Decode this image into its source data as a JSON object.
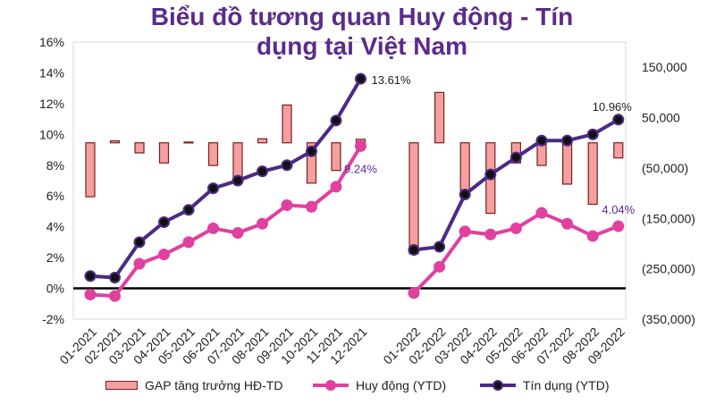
{
  "title_line1": "Biểu đồ tương quan Huy động - Tín",
  "title_line2": "dụng tại Việt Nam",
  "chart_data": {
    "type": "combo",
    "title": "Biểu đồ tương quan Huy động - Tín dụng tại Việt Nam",
    "categories": [
      "01-2021",
      "02-2021",
      "03-2021",
      "04-2021",
      "05-2021",
      "06-2021",
      "07-2021",
      "08-2021",
      "09-2021",
      "10-2021",
      "11-2021",
      "12-2021",
      "01-2022",
      "02-2022",
      "03-2022",
      "04-2022",
      "05-2022",
      "06-2022",
      "07-2022",
      "08-2022",
      "09-2022"
    ],
    "left_axis": {
      "ylim": [
        -2,
        16
      ],
      "ticks": [
        "-2%",
        "0%",
        "2%",
        "4%",
        "6%",
        "8%",
        "10%",
        "12%",
        "14%",
        "16%"
      ]
    },
    "right_axis": {
      "ylim": [
        -350000,
        200000
      ],
      "ticks": [
        "(350,000)",
        "(250,000)",
        "(150,000)",
        "(50,000)",
        "50,000",
        "150,000"
      ]
    },
    "series": [
      {
        "name": "GAP tăng trưởng HĐ-TD",
        "type": "bar",
        "axis": "right",
        "color": "#f4a0a0",
        "edge": "#7a1f1f",
        "values": [
          -107000,
          4000,
          -20000,
          -40000,
          1500,
          -45000,
          -67000,
          8000,
          75000,
          -80000,
          -55000,
          7000,
          -220000,
          100000,
          -102000,
          -140000,
          -40000,
          -45000,
          -82000,
          -122000,
          -30000
        ]
      },
      {
        "name": "Huy động (YTD)",
        "type": "line",
        "axis": "left",
        "color": "#e040a0",
        "values": [
          -0.4,
          -0.5,
          1.6,
          2.2,
          3.0,
          3.9,
          3.6,
          4.2,
          5.4,
          5.3,
          6.6,
          9.24,
          -0.3,
          1.4,
          3.7,
          3.5,
          3.9,
          4.9,
          4.2,
          3.4,
          4.04
        ]
      },
      {
        "name": "Tín dụng (YTD)",
        "type": "line",
        "axis": "left",
        "color": "#4a2a85",
        "values": [
          0.8,
          0.7,
          3.0,
          4.3,
          5.1,
          6.5,
          7.0,
          7.6,
          8.0,
          8.9,
          10.9,
          13.61,
          2.5,
          2.7,
          6.1,
          7.4,
          8.5,
          9.6,
          9.6,
          10.0,
          10.96
        ]
      }
    ],
    "data_labels": [
      {
        "text": "13.61%",
        "series": "Tín dụng (YTD)",
        "category": "12-2021"
      },
      {
        "text": "9.24%",
        "series": "Huy động (YTD)",
        "category": "12-2021"
      },
      {
        "text": "10.96%",
        "series": "Tín dụng (YTD)",
        "category": "09-2022"
      },
      {
        "text": "4.04%",
        "series": "Huy động (YTD)",
        "category": "09-2022"
      }
    ],
    "grid": true,
    "legend": "bottom"
  }
}
